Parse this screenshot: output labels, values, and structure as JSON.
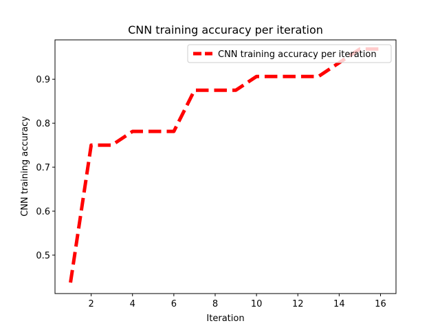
{
  "chart_data": {
    "type": "line",
    "title": "CNN training accuracy per iteration",
    "xlabel": "Iteration",
    "ylabel": "CNN training accuracy",
    "xlim": [
      0.25,
      16.75
    ],
    "ylim": [
      0.4125,
      0.9895
    ],
    "xticks": [
      2,
      4,
      6,
      8,
      10,
      12,
      14,
      16
    ],
    "yticks": [
      0.5,
      0.6,
      0.7,
      0.8,
      0.9
    ],
    "legend_position": "top-right",
    "grid": false,
    "series": [
      {
        "name": "CNN training accuracy per iteration",
        "color": "#ff0000",
        "line_style": "dashed",
        "x": [
          1,
          2,
          3,
          4,
          5,
          6,
          7,
          8,
          9,
          10,
          11,
          12,
          13,
          14,
          15,
          16
        ],
        "y": [
          0.4375,
          0.75,
          0.75,
          0.78125,
          0.78125,
          0.78125,
          0.875,
          0.875,
          0.875,
          0.90625,
          0.90625,
          0.90625,
          0.90625,
          0.9375,
          0.96875,
          0.96875
        ]
      }
    ]
  }
}
